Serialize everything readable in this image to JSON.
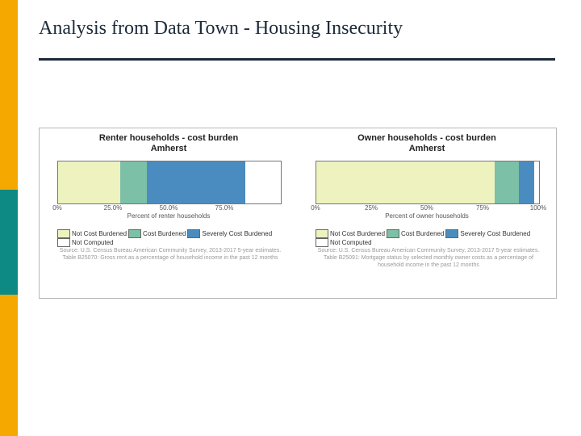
{
  "title": "Analysis from Data Town - Housing Insecurity",
  "colors": {
    "accent_yellow": "#f5a800",
    "accent_teal": "#0d8a84",
    "rule": "#1c2a3a",
    "box_border": "#b7b7b7",
    "plot_border": "#777777",
    "tick_color": "#555555",
    "source_color": "#999999"
  },
  "series_colors": {
    "not_cost_burdened": "#eef2bf",
    "cost_burdened": "#7cc0a8",
    "severely_cost_burdened": "#4a8cbf",
    "not_computed": "#ffffff"
  },
  "legend_labels": {
    "not_cost_burdened": "Not Cost Burdened",
    "cost_burdened": "Cost Burdened",
    "severely_cost_burdened": "Severely Cost Burdened",
    "not_computed": "Not Computed"
  },
  "panels": {
    "left": {
      "title_line1": "Renter households - cost burden",
      "title_line2": "Amherst",
      "axis_label": "Percent of renter households",
      "ticks": [
        "0%",
        "25.0%",
        "50.0%",
        "75.0%"
      ],
      "tick_positions_pct": [
        0,
        25,
        50,
        75
      ],
      "segments": [
        {
          "key": "not_cost_burdened",
          "value": 28
        },
        {
          "key": "cost_burdened",
          "value": 12
        },
        {
          "key": "severely_cost_burdened",
          "value": 44
        },
        {
          "key": "not_computed",
          "value": 16
        }
      ],
      "source": "Source: U.S. Census Bureau American Community Survey, 2013-2017 5-year estimates. Table B25070: Gross rent as a percentage of household income in the past 12 months"
    },
    "right": {
      "title_line1": "Owner households - cost burden",
      "title_line2": "Amherst",
      "axis_label": "Percent of owner households",
      "ticks": [
        "0%",
        "25%",
        "50%",
        "75%",
        "100%"
      ],
      "tick_positions_pct": [
        0,
        25,
        50,
        75,
        100
      ],
      "segments": [
        {
          "key": "not_cost_burdened",
          "value": 80
        },
        {
          "key": "cost_burdened",
          "value": 11
        },
        {
          "key": "severely_cost_burdened",
          "value": 7
        },
        {
          "key": "not_computed",
          "value": 2
        }
      ],
      "source": "Source: U.S. Census Bureau American Community Survey, 2013-2017 5-year estimates. Table B25091: Mortgage status by selected monthly owner costs as a percentage of household income in the past 12 months"
    }
  }
}
